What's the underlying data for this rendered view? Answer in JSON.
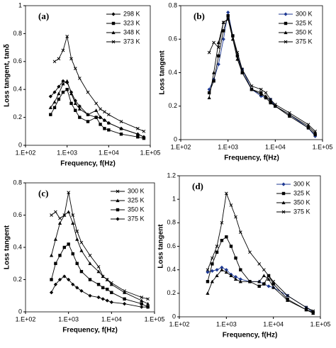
{
  "chart_data": [
    {
      "type": "line",
      "label": "(a)",
      "x_label": "Frequency, f(Hz)",
      "y_label": "Loss tangent, tanδ",
      "log_x": true,
      "x": [
        400,
        500,
        630,
        800,
        1000,
        1260,
        1580,
        2000,
        3160,
        5000,
        6300,
        7940,
        10000,
        20000,
        50000,
        70000
      ],
      "xlim": [
        100,
        100000
      ],
      "xticks": [
        {
          "value": 100,
          "label": "1.E+02"
        },
        {
          "value": 1000,
          "label": "1.E+03"
        },
        {
          "value": 10000,
          "label": "1.E+04"
        },
        {
          "value": 100000,
          "label": "1.E+05"
        }
      ],
      "ylim": [
        0,
        1
      ],
      "yticks": [
        0,
        0.2,
        0.4,
        0.6,
        0.8,
        1
      ],
      "legend": "upper right",
      "series": [
        {
          "name": "298 K",
          "color": "#000000",
          "marker": "diamond",
          "values": [
            0.35,
            0.38,
            0.42,
            0.46,
            0.45,
            0.38,
            0.32,
            0.28,
            0.22,
            0.2,
            0.2,
            0.18,
            0.16,
            0.12,
            0.08,
            0.06
          ]
        },
        {
          "name": "323 K",
          "color": "#000000",
          "marker": "square",
          "values": [
            0.22,
            0.27,
            0.33,
            0.38,
            0.4,
            0.3,
            0.25,
            0.2,
            0.17,
            0.2,
            0.15,
            0.12,
            0.11,
            0.08,
            0.06,
            0.05
          ]
        },
        {
          "name": "348 K",
          "color": "#000000",
          "marker": "triangle",
          "values": [
            0.27,
            0.31,
            0.37,
            0.44,
            0.46,
            0.37,
            0.3,
            0.26,
            0.22,
            0.25,
            0.2,
            0.18,
            0.16,
            0.12,
            0.08,
            0.06
          ]
        },
        {
          "name": "373 K",
          "color": "#000000",
          "marker": "x",
          "values": [
            null,
            0.6,
            0.62,
            0.68,
            0.78,
            0.62,
            0.55,
            0.48,
            0.38,
            0.3,
            0.26,
            0.24,
            0.22,
            0.17,
            0.12,
            0.1
          ]
        }
      ]
    },
    {
      "type": "line",
      "label": "(b)",
      "x_label": "Frequency, f(Hz)",
      "y_label": "Loss tangent",
      "log_x": true,
      "x": [
        400,
        500,
        630,
        800,
        1000,
        1260,
        1580,
        2000,
        3160,
        5000,
        6300,
        7940,
        10000,
        20000,
        50000,
        70000
      ],
      "xlim": [
        100,
        100000
      ],
      "xticks": [
        {
          "value": 100,
          "label": "1.E+02"
        },
        {
          "value": 1000,
          "label": "1.E+03"
        },
        {
          "value": 10000,
          "label": "1.E+04"
        },
        {
          "value": 100000,
          "label": "1.E+05"
        }
      ],
      "ylim": [
        0,
        0.8
      ],
      "yticks": [
        0,
        0.2,
        0.4,
        0.6,
        0.8
      ],
      "legend": "upper right",
      "series": [
        {
          "name": "300 K",
          "color": "#1f3a93",
          "marker": "diamond",
          "values": [
            0.3,
            0.36,
            0.45,
            0.6,
            0.76,
            0.62,
            0.5,
            0.42,
            0.3,
            0.26,
            0.25,
            0.24,
            0.2,
            0.15,
            0.07,
            0.02
          ]
        },
        {
          "name": "325 K",
          "color": "#000000",
          "marker": "square",
          "values": [
            0.28,
            0.35,
            0.5,
            0.65,
            0.74,
            0.62,
            0.5,
            0.4,
            0.3,
            0.28,
            0.25,
            0.22,
            0.2,
            0.14,
            0.07,
            0.03
          ]
        },
        {
          "name": "350 K",
          "color": "#000000",
          "marker": "triangle",
          "values": [
            0.25,
            0.4,
            0.58,
            0.7,
            0.72,
            0.6,
            0.48,
            0.4,
            0.3,
            0.27,
            0.26,
            0.23,
            0.2,
            0.15,
            0.08,
            0.04
          ]
        },
        {
          "name": "375 K",
          "color": "#000000",
          "marker": "x",
          "values": [
            0.52,
            0.58,
            0.55,
            0.7,
            0.72,
            0.62,
            0.52,
            0.42,
            0.32,
            0.3,
            0.28,
            0.24,
            0.21,
            0.16,
            0.09,
            0.05
          ]
        }
      ]
    },
    {
      "type": "line",
      "label": "(c)",
      "x_label": "Frequency, f(Hz)",
      "y_label": "Loss tangent",
      "log_x": true,
      "x": [
        400,
        500,
        630,
        800,
        1000,
        1260,
        1580,
        2000,
        3160,
        5000,
        6300,
        7940,
        10000,
        20000,
        50000,
        70000
      ],
      "xlim": [
        100,
        100000
      ],
      "xticks": [
        {
          "value": 100,
          "label": "1.E+02"
        },
        {
          "value": 1000,
          "label": "1.E+03"
        },
        {
          "value": 10000,
          "label": "1.E+04"
        },
        {
          "value": 100000,
          "label": "1.E+05"
        }
      ],
      "ylim": [
        0,
        0.8
      ],
      "yticks": [
        0,
        0.2,
        0.4,
        0.6,
        0.8
      ],
      "legend": "upper right",
      "series": [
        {
          "name": "300 K",
          "color": "#000000",
          "marker": "x",
          "values": [
            0.6,
            0.62,
            0.58,
            0.6,
            0.74,
            0.6,
            0.5,
            0.43,
            0.35,
            0.28,
            0.22,
            0.2,
            0.18,
            0.13,
            0.09,
            0.08
          ]
        },
        {
          "name": "325 K",
          "color": "#000000",
          "marker": "triangle",
          "values": [
            0.35,
            0.45,
            0.55,
            0.6,
            0.62,
            0.55,
            0.45,
            0.38,
            0.3,
            0.25,
            0.22,
            0.2,
            0.17,
            0.12,
            0.07,
            0.05
          ]
        },
        {
          "name": "350 K",
          "color": "#000000",
          "marker": "square",
          "values": [
            0.2,
            0.3,
            0.35,
            0.4,
            0.42,
            0.36,
            0.3,
            0.25,
            0.2,
            0.17,
            0.15,
            0.14,
            0.12,
            0.08,
            0.05,
            0.03
          ]
        },
        {
          "name": "375 K",
          "color": "#000000",
          "marker": "diamond",
          "values": [
            0.12,
            0.17,
            0.2,
            0.22,
            0.2,
            0.17,
            0.15,
            0.13,
            0.1,
            0.09,
            0.08,
            0.07,
            0.06,
            0.05,
            0.03,
            0.03
          ]
        }
      ]
    },
    {
      "type": "line",
      "label": "(d)",
      "x_label": "Frequency, f(Hz)",
      "y_label": "Loss tangent",
      "log_x": true,
      "x": [
        400,
        500,
        630,
        800,
        1000,
        1260,
        1580,
        2000,
        3160,
        5000,
        6300,
        7940,
        10000,
        20000,
        50000,
        70000
      ],
      "xlim": [
        100,
        100000
      ],
      "xticks": [
        {
          "value": 100,
          "label": "1.E+02"
        },
        {
          "value": 1000,
          "label": "1.E+03"
        },
        {
          "value": 10000,
          "label": "1.E+04"
        },
        {
          "value": 100000,
          "label": "1.E+05"
        }
      ],
      "ylim": [
        0,
        1.2
      ],
      "yticks": [
        0,
        0.2,
        0.4,
        0.6,
        0.8,
        1,
        1.2
      ],
      "legend": "upper right",
      "series": [
        {
          "name": "300 K",
          "color": "#1f3a93",
          "marker": "diamond",
          "values": [
            0.38,
            0.39,
            0.4,
            0.42,
            0.4,
            0.36,
            0.34,
            0.32,
            0.3,
            0.3,
            0.28,
            0.26,
            0.25,
            0.18,
            0.08,
            0.04
          ]
        },
        {
          "name": "325 K",
          "color": "#000000",
          "marker": "square",
          "values": [
            0.3,
            0.45,
            0.55,
            0.65,
            0.68,
            0.6,
            0.5,
            0.4,
            0.3,
            0.26,
            0.28,
            0.35,
            0.28,
            0.15,
            0.06,
            0.04
          ]
        },
        {
          "name": "350 K",
          "color": "#000000",
          "marker": "triangle",
          "values": [
            0.2,
            0.3,
            0.35,
            0.4,
            0.38,
            0.35,
            0.32,
            0.3,
            0.3,
            0.3,
            0.35,
            0.32,
            0.25,
            0.14,
            0.06,
            0.03
          ]
        },
        {
          "name": "375 K",
          "color": "#000000",
          "marker": "x",
          "values": [
            0.4,
            0.5,
            0.6,
            0.8,
            1.05,
            0.95,
            0.85,
            0.72,
            0.55,
            0.45,
            0.4,
            0.35,
            0.3,
            0.18,
            0.08,
            0.05
          ]
        }
      ]
    }
  ]
}
